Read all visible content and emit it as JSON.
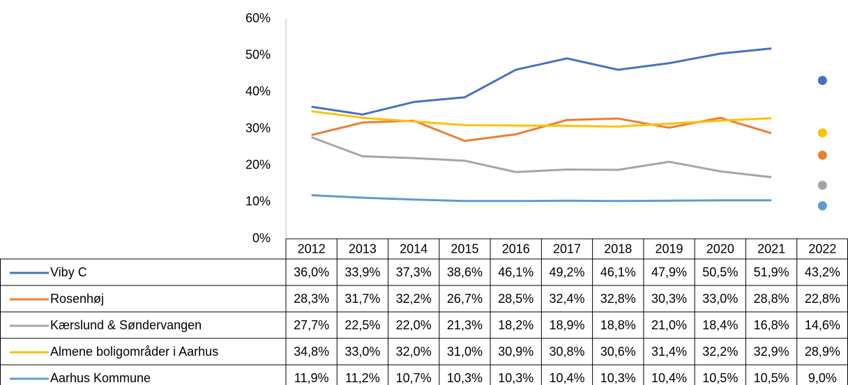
{
  "chart_data": {
    "type": "line",
    "categories": [
      "2012",
      "2013",
      "2014",
      "2015",
      "2016",
      "2017",
      "2018",
      "2019",
      "2020",
      "2021",
      "2022"
    ],
    "ylim": [
      0,
      60
    ],
    "yticks": [
      {
        "value": 0,
        "label": "0%"
      },
      {
        "value": 10,
        "label": "10%"
      },
      {
        "value": 20,
        "label": "20%"
      },
      {
        "value": 30,
        "label": "30%"
      },
      {
        "value": 40,
        "label": "40%"
      },
      {
        "value": 50,
        "label": "50%"
      },
      {
        "value": 60,
        "label": "60%"
      }
    ],
    "grid": false,
    "series": [
      {
        "name": "Viby C",
        "color": "#4472c4",
        "values": [
          36.0,
          33.9,
          37.3,
          38.6,
          46.1,
          49.2,
          46.1,
          47.9,
          50.5,
          51.9,
          43.2
        ],
        "value_labels": [
          "36,0%",
          "33,9%",
          "37,3%",
          "38,6%",
          "46,1%",
          "49,2%",
          "46,1%",
          "47,9%",
          "50,5%",
          "51,9%",
          "43,2%"
        ]
      },
      {
        "name": "Rosenhøj",
        "color": "#ed7d31",
        "values": [
          28.3,
          31.7,
          32.2,
          26.7,
          28.5,
          32.4,
          32.8,
          30.3,
          33.0,
          28.8,
          22.8
        ],
        "value_labels": [
          "28,3%",
          "31,7%",
          "32,2%",
          "26,7%",
          "28,5%",
          "32,4%",
          "32,8%",
          "30,3%",
          "33,0%",
          "28,8%",
          "22,8%"
        ]
      },
      {
        "name": "Kærslund & Søndervangen",
        "color": "#a5a5a5",
        "values": [
          27.7,
          22.5,
          22.0,
          21.3,
          18.2,
          18.9,
          18.8,
          21.0,
          18.4,
          16.8,
          14.6
        ],
        "value_labels": [
          "27,7%",
          "22,5%",
          "22,0%",
          "21,3%",
          "18,2%",
          "18,9%",
          "18,8%",
          "21,0%",
          "18,4%",
          "16,8%",
          "14,6%"
        ]
      },
      {
        "name": "Almene boligområder i Aarhus",
        "color": "#ffc000",
        "values": [
          34.8,
          33.0,
          32.0,
          31.0,
          30.9,
          30.8,
          30.6,
          31.4,
          32.2,
          32.9,
          28.9
        ],
        "value_labels": [
          "34,8%",
          "33,0%",
          "32,0%",
          "31,0%",
          "30,9%",
          "30,8%",
          "30,6%",
          "31,4%",
          "32,2%",
          "32,9%",
          "28,9%"
        ]
      },
      {
        "name": "Aarhus Kommune",
        "color": "#5b9bd5",
        "values": [
          11.9,
          11.2,
          10.7,
          10.3,
          10.3,
          10.4,
          10.3,
          10.4,
          10.5,
          10.5,
          9.0
        ],
        "value_labels": [
          "11,9%",
          "11,2%",
          "10,7%",
          "10,3%",
          "10,3%",
          "10,4%",
          "10,3%",
          "10,4%",
          "10,5%",
          "10,5%",
          "9,0%"
        ]
      }
    ]
  }
}
